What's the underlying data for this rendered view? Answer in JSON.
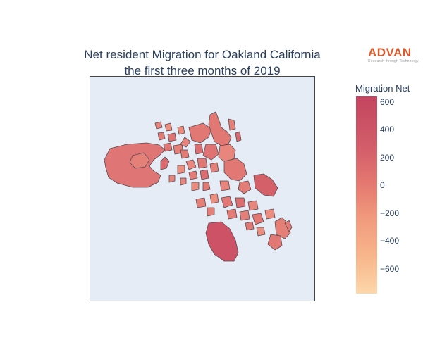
{
  "title": {
    "line1": "Net resident Migration for Oakland California",
    "line2": "the first three months of 2019"
  },
  "logo": {
    "word": "ADVAN",
    "tagline": "Research through Technology"
  },
  "colorbar": {
    "title": "Migration Net",
    "ticks": [
      {
        "label": "600",
        "value": 600
      },
      {
        "label": "400",
        "value": 400
      },
      {
        "label": "200",
        "value": 200
      },
      {
        "label": "0",
        "value": 0
      },
      {
        "label": "−200",
        "value": -200
      },
      {
        "label": "−400",
        "value": -400
      },
      {
        "label": "−600",
        "value": -600
      }
    ],
    "range": [
      -780,
      640
    ],
    "colors": [
      "#fcd7aa",
      "#f8b78c",
      "#f19a7d",
      "#e57a71",
      "#d4606a",
      "#c3445f"
    ]
  },
  "map": {
    "type": "choropleth",
    "region": "Oakland, California",
    "background_color": "#e5ecf6",
    "border_color": "#555555"
  }
}
